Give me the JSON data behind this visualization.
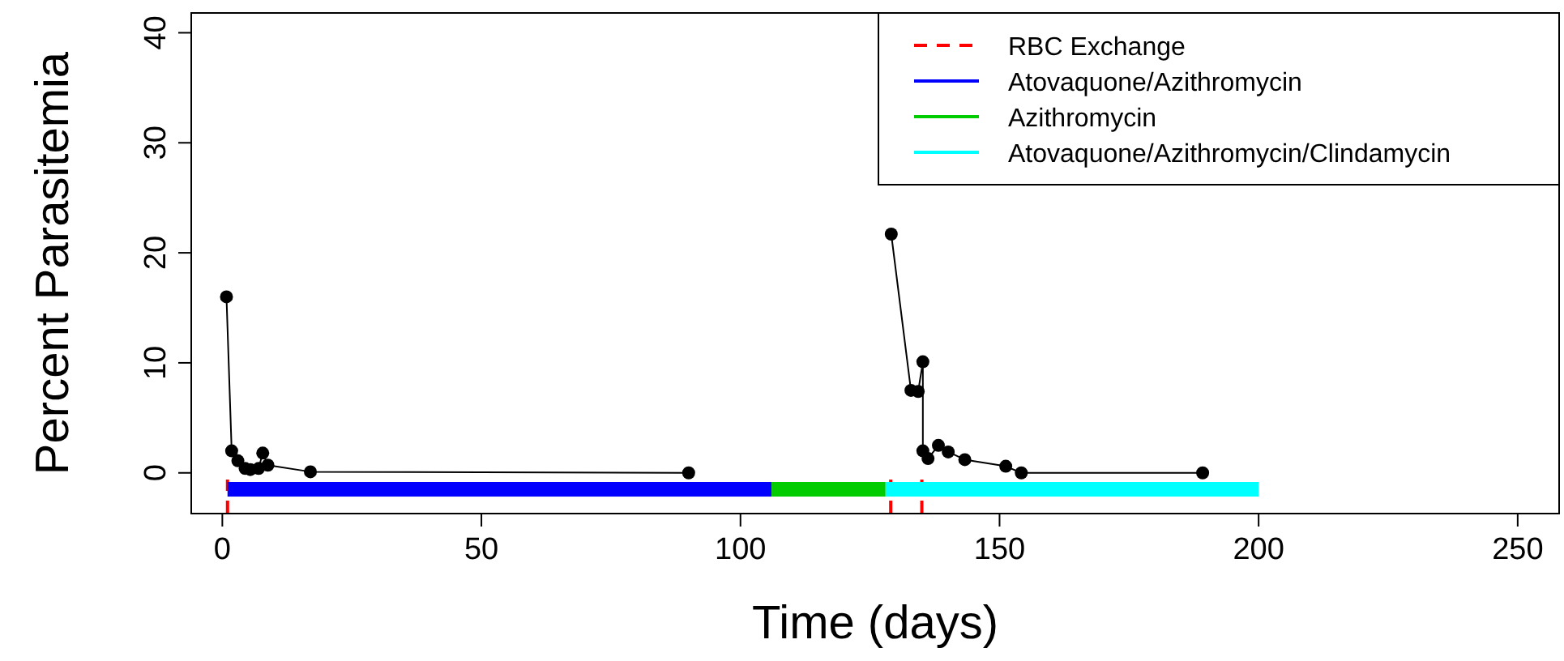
{
  "chart_data": {
    "type": "line",
    "xlabel": "Time (days)",
    "ylabel": "Percent Parasitemia",
    "xlim": [
      -6,
      258
    ],
    "xticks": [
      0,
      50,
      100,
      150,
      200,
      250
    ],
    "ylim": [
      -3.7,
      41.8
    ],
    "yticks": [
      0,
      10,
      20,
      30,
      40
    ],
    "series": [
      {
        "color": "#000000",
        "x": [
          0.8,
          1.8,
          3.0,
          4.4,
          5.4,
          7.0,
          7.8,
          8.8,
          17,
          90
        ],
        "values": [
          16.0,
          2.0,
          1.1,
          0.4,
          0.3,
          0.4,
          1.8,
          0.7,
          0.1,
          0
        ]
      },
      {
        "color": "#000000",
        "x": [
          129.1,
          132.9,
          134.3,
          135.2,
          135.2,
          136.2,
          138.2,
          140.1,
          143.3,
          151.2,
          154.2,
          189.2
        ],
        "values": [
          21.7,
          7.5,
          7.4,
          10.1,
          2.0,
          1.3,
          2.5,
          1.9,
          1.2,
          0.6,
          0,
          0
        ]
      },
      {
        "name": "RBC Exchange",
        "color": "#ff0000",
        "line_style": "dashed",
        "marker": "none",
        "x": [
          1,
          1
        ],
        "values": [
          -3.7,
          -0.6
        ]
      },
      {
        "color": "#ff0000",
        "line_style": "dashed",
        "marker": "none",
        "x": [
          129,
          129
        ],
        "values": [
          -3.7,
          -0.6
        ]
      },
      {
        "color": "#ff0000",
        "line_style": "dashed",
        "marker": "none",
        "x": [
          135,
          135
        ],
        "values": [
          -3.7,
          -0.6
        ]
      },
      {
        "name": "Atovaquone/Azithromycin",
        "color": "#0000ff",
        "marker": "none",
        "x": [
          1,
          106
        ],
        "values": [
          -1.5,
          -1.5
        ]
      },
      {
        "name": "Azithromycin",
        "color": "#00cc00",
        "marker": "none",
        "x": [
          106,
          128
        ],
        "values": [
          -1.5,
          -1.5
        ]
      },
      {
        "name": "Atovaquone/Azithromycin/Clindamycin",
        "color": "#00ffff",
        "marker": "none",
        "x": [
          128,
          200
        ],
        "values": [
          -1.5,
          -1.5
        ]
      }
    ],
    "marker": "circle",
    "line_style": "solid",
    "grid": false,
    "legend": "top right"
  }
}
